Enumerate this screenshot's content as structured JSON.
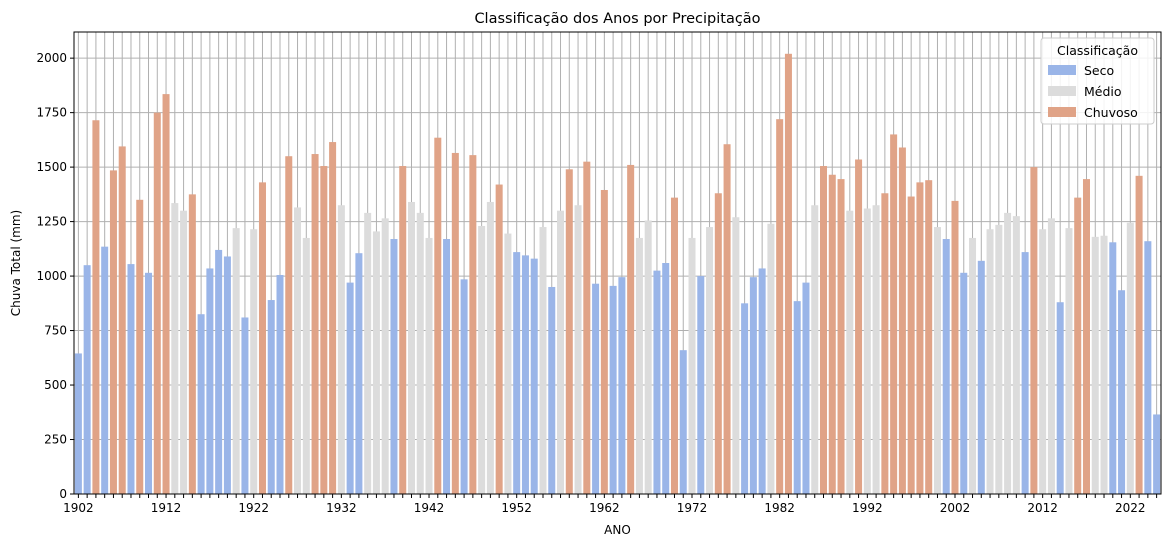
{
  "chart_data": {
    "type": "bar",
    "title": "Classificação dos Anos por Precipitação",
    "xlabel": "ANO",
    "ylabel": "Chuva Total (mm)",
    "ylim": [
      0,
      2120
    ],
    "yticks": [
      "0",
      "250",
      "500",
      "750",
      "1000",
      "1250",
      "1500",
      "1750",
      "2000"
    ],
    "xtick_labels": [
      "1902",
      "1912",
      "1922",
      "1932",
      "1942",
      "1952",
      "1962",
      "1972",
      "1982",
      "1992",
      "2002",
      "2012",
      "2022"
    ],
    "grid": true,
    "legend": {
      "title": "Classificação",
      "placement": "top-right",
      "entries": [
        "Seco",
        "Médio",
        "Chuvoso"
      ]
    },
    "colors": {
      "Seco": "#9ab5e8",
      "Médio": "#dcdcdc",
      "Chuvoso": "#e0a387"
    },
    "first_year": 1902,
    "values": [
      645,
      1050,
      1715,
      1135,
      1485,
      1595,
      1055,
      1350,
      1015,
      1750,
      1835,
      1335,
      1300,
      1375,
      825,
      1035,
      1120,
      1090,
      1220,
      810,
      1215,
      1430,
      890,
      1005,
      1550,
      1315,
      1175,
      1560,
      1505,
      1615,
      1325,
      970,
      1105,
      1290,
      1205,
      1265,
      1170,
      1505,
      1340,
      1290,
      1175,
      1635,
      1170,
      1565,
      985,
      1555,
      1230,
      1340,
      1420,
      1195,
      1110,
      1095,
      1080,
      1225,
      950,
      1300,
      1490,
      1325,
      1525,
      965,
      1395,
      955,
      995,
      1510,
      1175,
      1255,
      1025,
      1060,
      1360,
      660,
      1175,
      1000,
      1225,
      1380,
      1605,
      1270,
      875,
      995,
      1035,
      1240,
      1720,
      2020,
      885,
      970,
      1325,
      1505,
      1465,
      1445,
      1300,
      1535,
      1310,
      1325,
      1380,
      1650,
      1590,
      1365,
      1430,
      1440,
      1225,
      1170,
      1345,
      1015,
      1175,
      1070,
      1215,
      1235,
      1290,
      1275,
      1110,
      1500,
      1215,
      1265,
      880,
      1220,
      1360,
      1445,
      1180,
      1185,
      1155,
      935,
      1245,
      1460,
      1160,
      365
    ],
    "categories": [
      "Seco",
      "Seco",
      "Chuvoso",
      "Seco",
      "Chuvoso",
      "Chuvoso",
      "Seco",
      "Chuvoso",
      "Seco",
      "Chuvoso",
      "Chuvoso",
      "Médio",
      "Médio",
      "Chuvoso",
      "Seco",
      "Seco",
      "Seco",
      "Seco",
      "Médio",
      "Seco",
      "Médio",
      "Chuvoso",
      "Seco",
      "Seco",
      "Chuvoso",
      "Médio",
      "Médio",
      "Chuvoso",
      "Chuvoso",
      "Chuvoso",
      "Médio",
      "Seco",
      "Seco",
      "Médio",
      "Médio",
      "Médio",
      "Seco",
      "Chuvoso",
      "Médio",
      "Médio",
      "Médio",
      "Chuvoso",
      "Seco",
      "Chuvoso",
      "Seco",
      "Chuvoso",
      "Médio",
      "Médio",
      "Chuvoso",
      "Médio",
      "Seco",
      "Seco",
      "Seco",
      "Médio",
      "Seco",
      "Médio",
      "Chuvoso",
      "Médio",
      "Chuvoso",
      "Seco",
      "Chuvoso",
      "Seco",
      "Seco",
      "Chuvoso",
      "Médio",
      "Médio",
      "Seco",
      "Seco",
      "Chuvoso",
      "Seco",
      "Médio",
      "Seco",
      "Médio",
      "Chuvoso",
      "Chuvoso",
      "Médio",
      "Seco",
      "Seco",
      "Seco",
      "Médio",
      "Chuvoso",
      "Chuvoso",
      "Seco",
      "Seco",
      "Médio",
      "Chuvoso",
      "Chuvoso",
      "Chuvoso",
      "Médio",
      "Chuvoso",
      "Médio",
      "Médio",
      "Chuvoso",
      "Chuvoso",
      "Chuvoso",
      "Chuvoso",
      "Chuvoso",
      "Chuvoso",
      "Médio",
      "Seco",
      "Chuvoso",
      "Seco",
      "Médio",
      "Seco",
      "Médio",
      "Médio",
      "Médio",
      "Médio",
      "Seco",
      "Chuvoso",
      "Médio",
      "Médio",
      "Seco",
      "Médio",
      "Chuvoso",
      "Chuvoso",
      "Médio",
      "Médio",
      "Seco",
      "Seco",
      "Médio",
      "Chuvoso",
      "Seco",
      "Seco"
    ]
  }
}
